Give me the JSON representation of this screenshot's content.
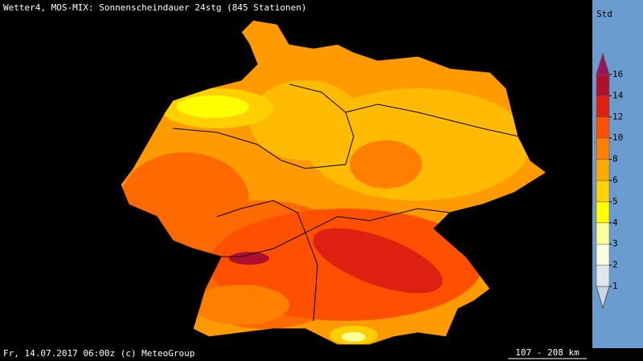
{
  "header": {
    "title": "Wetter4, MOS-MIX: Sonnenscheindauer 24stg (845 Stationen)"
  },
  "footer": {
    "timestamp": "Fr, 14.07.2017 06:00z (c) MeteoGroup",
    "scale": "107 - 208 km"
  },
  "legend": {
    "unit": "Std",
    "labels": [
      1,
      2,
      3,
      4,
      5,
      6,
      8,
      10,
      12,
      14,
      16
    ],
    "colors": [
      "#c9d6e3",
      "#dfe8ee",
      "#fffde0",
      "#ffff99",
      "#ffff00",
      "#ffd200",
      "#ffaa00",
      "#ff8000",
      "#ff5000",
      "#dd2010",
      "#b01030",
      "#a0105a"
    ]
  }
}
